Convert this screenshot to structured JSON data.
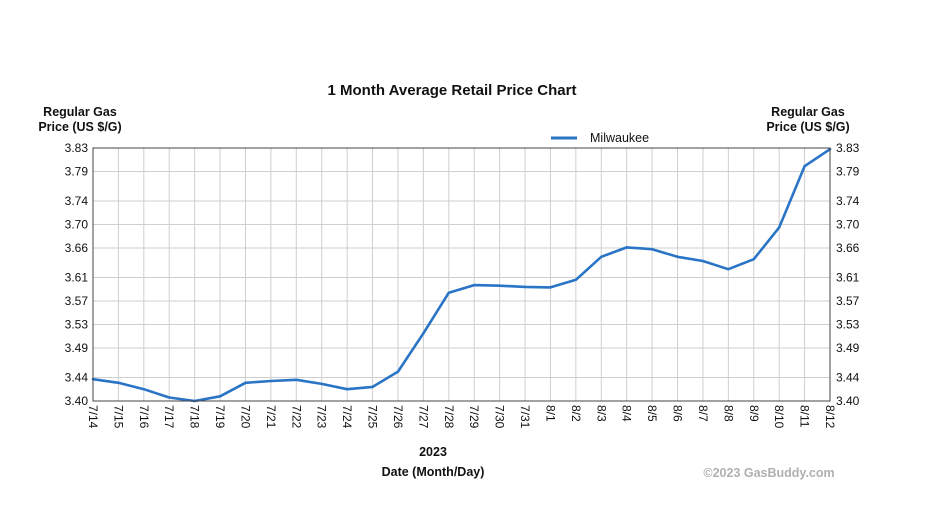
{
  "chart_data": {
    "type": "line",
    "title": "1 Month Average Retail Price Chart",
    "ylabel_left": [
      "Regular Gas",
      "Price (US $/G)"
    ],
    "ylabel_right": [
      "Regular Gas",
      "Price (US $/G)"
    ],
    "year_label": "2023",
    "xlabel": "Date (Month/Day)",
    "credit": "©2023 GasBuddy.com",
    "ylim": [
      3.4,
      3.83
    ],
    "y_ticks": [
      "3.83",
      "3.79",
      "3.74",
      "3.70",
      "3.66",
      "3.61",
      "3.57",
      "3.53",
      "3.49",
      "3.44",
      "3.40"
    ],
    "y_tick_values": [
      3.83,
      3.79,
      3.74,
      3.7,
      3.66,
      3.61,
      3.57,
      3.53,
      3.49,
      3.44,
      3.4
    ],
    "grid": true,
    "legend_position": "top-right",
    "categories": [
      "7/14",
      "7/15",
      "7/16",
      "7/17",
      "7/18",
      "7/19",
      "7/20",
      "7/21",
      "7/22",
      "7/23",
      "7/24",
      "7/25",
      "7/26",
      "7/27",
      "7/28",
      "7/29",
      "7/30",
      "7/31",
      "8/1",
      "8/2",
      "8/3",
      "8/4",
      "8/5",
      "8/6",
      "8/7",
      "8/8",
      "8/9",
      "8/10",
      "8/11",
      "8/12"
    ],
    "series": [
      {
        "name": "Milwaukee",
        "color": "#2a74c6",
        "values": [
          3.437,
          3.431,
          3.42,
          3.406,
          3.4,
          3.408,
          3.431,
          3.434,
          3.436,
          3.429,
          3.42,
          3.424,
          3.45,
          3.515,
          3.584,
          3.597,
          3.596,
          3.594,
          3.593,
          3.606,
          3.645,
          3.661,
          3.658,
          3.645,
          3.638,
          3.624,
          3.641,
          3.695,
          3.799,
          3.828
        ]
      }
    ]
  }
}
